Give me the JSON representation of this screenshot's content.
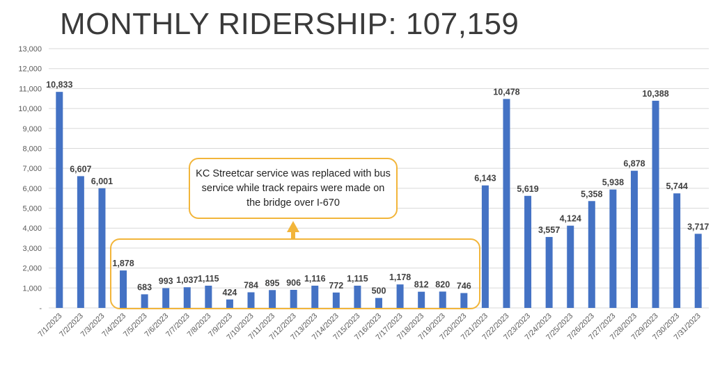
{
  "title": "MONTHLY RIDERSHIP: 107,159",
  "annotation": {
    "text": "KC Streetcar service was replaced with bus service while track repairs were made on the bridge over I-670"
  },
  "colors": {
    "bar": "#4472c4",
    "highlight": "#f2b53a",
    "grid": "#d9d9d9"
  },
  "chart_data": {
    "type": "bar",
    "title": "MONTHLY RIDERSHIP: 107,159",
    "categories": [
      "7/1/2023",
      "7/2/2023",
      "7/3/2023",
      "7/4/2023",
      "7/5/2023",
      "7/6/2023",
      "7/7/2023",
      "7/8/2023",
      "7/9/2023",
      "7/10/2023",
      "7/11/2023",
      "7/12/2023",
      "7/13/2023",
      "7/14/2023",
      "7/15/2023",
      "7/16/2023",
      "7/17/2023",
      "7/18/2023",
      "7/19/2023",
      "7/20/2023",
      "7/21/2023",
      "7/22/2023",
      "7/23/2023",
      "7/24/2023",
      "7/25/2023",
      "7/26/2023",
      "7/27/2023",
      "7/28/2023",
      "7/29/2023",
      "7/30/2023",
      "7/31/2023"
    ],
    "values": [
      10833,
      6607,
      6001,
      1878,
      683,
      993,
      1037,
      1115,
      424,
      784,
      895,
      906,
      1116,
      772,
      1115,
      500,
      1178,
      812,
      820,
      746,
      6143,
      10478,
      5619,
      3557,
      4124,
      5358,
      5938,
      6878,
      10388,
      5744,
      3717
    ],
    "data_labels": [
      "10,833",
      "6,607",
      "6,001",
      "1,878",
      "683",
      "993",
      "1,037",
      "1,115",
      "424",
      "784",
      "895",
      "906",
      "1,116",
      "772",
      "1,115",
      "500",
      "1,178",
      "812",
      "820",
      "746",
      "6,143",
      "10,478",
      "5,619",
      "3,557",
      "4,124",
      "5,358",
      "5,938",
      "6,878",
      "10,388",
      "5,744",
      "3,717"
    ],
    "ylim": [
      0,
      13000
    ],
    "yticks": [
      "-",
      "1,000",
      "2,000",
      "3,000",
      "4,000",
      "5,000",
      "6,000",
      "7,000",
      "8,000",
      "9,000",
      "10,000",
      "11,000",
      "12,000",
      "13,000"
    ],
    "grid": true,
    "legend": "none",
    "xlabel": "",
    "ylabel": ""
  }
}
